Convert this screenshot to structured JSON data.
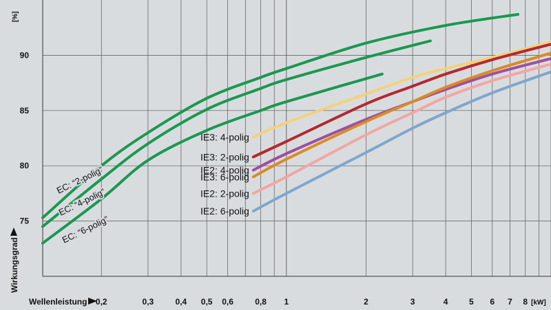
{
  "chart_data": {
    "type": "line",
    "xlabel": "Wellenleistung",
    "xunit": "[kW]",
    "ylabel": "Wirkungsgrad",
    "yunit": "[%]",
    "xscale": "log",
    "xlim": [
      0.12,
      10
    ],
    "ylim": [
      70,
      95
    ],
    "grid": true,
    "x_ticks": [
      {
        "value": 0.2,
        "label": "0,2"
      },
      {
        "value": 0.3,
        "label": "0,3"
      },
      {
        "value": 0.4,
        "label": "0,4"
      },
      {
        "value": 0.5,
        "label": "0,5"
      },
      {
        "value": 0.6,
        "label": "0,6"
      },
      {
        "value": 0.8,
        "label": "0,8"
      },
      {
        "value": 1,
        "label": "1"
      },
      {
        "value": 2,
        "label": "2"
      },
      {
        "value": 3,
        "label": "3"
      },
      {
        "value": 4,
        "label": "4"
      },
      {
        "value": 5,
        "label": "5"
      },
      {
        "value": 6,
        "label": "6"
      },
      {
        "value": 7,
        "label": "7"
      },
      {
        "value": 8,
        "label": "8"
      }
    ],
    "y_ticks": [
      75,
      80,
      85,
      90
    ],
    "series": [
      {
        "name": "EC: “2-polig”",
        "color": "#1a9850",
        "label_kind": "ec",
        "points": [
          [
            0.12,
            75.3
          ],
          [
            0.2,
            80.0
          ],
          [
            0.3,
            83.0
          ],
          [
            0.5,
            86.1
          ],
          [
            0.8,
            88.0
          ],
          [
            1,
            88.8
          ],
          [
            2,
            91.1
          ],
          [
            4,
            92.7
          ],
          [
            7.5,
            93.7
          ]
        ]
      },
      {
        "name": "EC: “4-polig”",
        "color": "#1a9850",
        "label_kind": "ec",
        "points": [
          [
            0.12,
            74.5
          ],
          [
            0.2,
            78.8
          ],
          [
            0.3,
            82.0
          ],
          [
            0.5,
            85.1
          ],
          [
            0.8,
            87.0
          ],
          [
            1,
            87.8
          ],
          [
            2,
            89.8
          ],
          [
            3.5,
            91.3
          ]
        ]
      },
      {
        "name": "EC: “6-polig”",
        "color": "#1a9850",
        "label_kind": "ec",
        "points": [
          [
            0.12,
            73.0
          ],
          [
            0.2,
            77.0
          ],
          [
            0.3,
            80.5
          ],
          [
            0.5,
            83.2
          ],
          [
            0.8,
            85.0
          ],
          [
            1,
            85.8
          ],
          [
            2.3,
            88.3
          ]
        ]
      },
      {
        "name": "IE3: 4-polig",
        "color": "#f2d27a",
        "label_kind": "ie",
        "points": [
          [
            0.75,
            82.6
          ],
          [
            1,
            83.9
          ],
          [
            2,
            86.5
          ],
          [
            3,
            88.0
          ],
          [
            4,
            88.8
          ],
          [
            6,
            89.8
          ],
          [
            10,
            91.2
          ]
        ]
      },
      {
        "name": "IE3: 2-polig",
        "color": "#b5282e",
        "label_kind": "ie",
        "points": [
          [
            0.75,
            80.8
          ],
          [
            1,
            82.2
          ],
          [
            2,
            85.6
          ],
          [
            3,
            87.2
          ],
          [
            4,
            88.3
          ],
          [
            6,
            89.6
          ],
          [
            10,
            91.0
          ]
        ]
      },
      {
        "name": "IE2: 4-polig",
        "color": "#a04e9e",
        "label_kind": "ie",
        "points": [
          [
            0.75,
            79.6
          ],
          [
            1,
            81.1
          ],
          [
            2,
            84.2
          ],
          [
            3,
            85.8
          ],
          [
            4,
            86.9
          ],
          [
            6,
            88.3
          ],
          [
            10,
            89.7
          ]
        ]
      },
      {
        "name": "IE3: 6-polig",
        "color": "#d88c24",
        "label_kind": "ie",
        "points": [
          [
            0.75,
            79.0
          ],
          [
            1,
            80.6
          ],
          [
            2,
            84.0
          ],
          [
            3,
            85.8
          ],
          [
            4,
            87.1
          ],
          [
            6,
            88.6
          ],
          [
            10,
            90.2
          ]
        ]
      },
      {
        "name": "IE2: 2-polig",
        "color": "#f0a7a3",
        "label_kind": "ie",
        "points": [
          [
            0.75,
            77.5
          ],
          [
            1,
            79.0
          ],
          [
            2,
            82.8
          ],
          [
            3,
            84.8
          ],
          [
            4,
            86.2
          ],
          [
            6,
            87.7
          ],
          [
            10,
            89.2
          ]
        ]
      },
      {
        "name": "IE2: 6-polig",
        "color": "#7fa7cc",
        "label_kind": "ie",
        "points": [
          [
            0.75,
            75.9
          ],
          [
            1,
            77.5
          ],
          [
            2,
            81.2
          ],
          [
            3,
            83.4
          ],
          [
            4,
            84.8
          ],
          [
            6,
            86.6
          ],
          [
            10,
            88.5
          ]
        ]
      }
    ]
  }
}
